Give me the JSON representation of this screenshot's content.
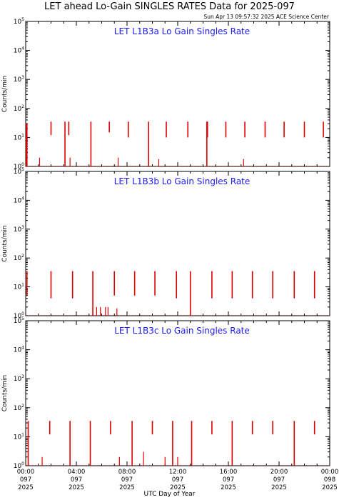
{
  "page": {
    "title": "LET ahead Lo-Gain SINGLES RATES Data for 2025-097",
    "timestamp": "Sun Apr 13 09:57:32 2025 ACE Science Center",
    "xlabel": "UTC Day of Year"
  },
  "colors": {
    "data": "#dd0000",
    "panel_title": "#1a1aff",
    "axes": "#000000"
  },
  "chart_data": [
    {
      "type": "line",
      "title": "LET L1B3a Lo Gain Singles Rate",
      "ylabel": "Counts/min",
      "yscale": "log",
      "ylim": [
        1,
        100000
      ],
      "yticks": [
        "10^0",
        "10^1",
        "10^2",
        "10^3",
        "10^4",
        "10^5"
      ],
      "xlim": [
        0,
        24
      ],
      "xunit": "hours UTC",
      "spikes": [
        {
          "x": 0.05,
          "top": 30,
          "bottom": 1
        },
        {
          "x": 0.1,
          "top": 30,
          "bottom": 1
        },
        {
          "x": 2.0,
          "top": 35,
          "bottom": 12
        },
        {
          "x": 3.1,
          "top": 35,
          "bottom": 1
        },
        {
          "x": 3.4,
          "top": 35,
          "bottom": 12
        },
        {
          "x": 5.15,
          "top": 35,
          "bottom": 1
        },
        {
          "x": 6.6,
          "top": 35,
          "bottom": 15
        },
        {
          "x": 8.1,
          "top": 35,
          "bottom": 10
        },
        {
          "x": 9.7,
          "top": 35,
          "bottom": 1
        },
        {
          "x": 11.1,
          "top": 35,
          "bottom": 10
        },
        {
          "x": 12.8,
          "top": 35,
          "bottom": 10
        },
        {
          "x": 14.3,
          "top": 35,
          "bottom": 1
        },
        {
          "x": 14.35,
          "top": 35,
          "bottom": 10
        },
        {
          "x": 15.8,
          "top": 35,
          "bottom": 10
        },
        {
          "x": 17.3,
          "top": 35,
          "bottom": 10
        },
        {
          "x": 18.9,
          "top": 35,
          "bottom": 10
        },
        {
          "x": 20.4,
          "top": 35,
          "bottom": 10
        },
        {
          "x": 22.0,
          "top": 35,
          "bottom": 10
        },
        {
          "x": 23.5,
          "top": 35,
          "bottom": 10
        }
      ],
      "minor_spikes": [
        {
          "x": 1.1,
          "top": 2
        },
        {
          "x": 3.5,
          "top": 2
        },
        {
          "x": 7.3,
          "top": 2
        },
        {
          "x": 9.7,
          "top": 2
        },
        {
          "x": 10.5,
          "top": 1.8
        },
        {
          "x": 17.2,
          "top": 1.8
        }
      ]
    },
    {
      "type": "line",
      "title": "LET L1B3b Lo Gain Singles Rate",
      "ylabel": "Counts/min",
      "yscale": "log",
      "ylim": [
        1,
        100000
      ],
      "yticks": [
        "10^0",
        "10^1",
        "10^2",
        "10^3",
        "10^4",
        "10^5"
      ],
      "xlim": [
        0,
        24
      ],
      "xunit": "hours UTC",
      "spikes": [
        {
          "x": 0.1,
          "top": 35,
          "bottom": 5
        },
        {
          "x": 2.0,
          "top": 35,
          "bottom": 4
        },
        {
          "x": 3.7,
          "top": 35,
          "bottom": 4
        },
        {
          "x": 5.3,
          "top": 35,
          "bottom": 1
        },
        {
          "x": 7.0,
          "top": 35,
          "bottom": 5
        },
        {
          "x": 8.6,
          "top": 35,
          "bottom": 5
        },
        {
          "x": 10.2,
          "top": 35,
          "bottom": 5
        },
        {
          "x": 11.9,
          "top": 35,
          "bottom": 4
        },
        {
          "x": 13.0,
          "top": 35,
          "bottom": 1
        },
        {
          "x": 14.7,
          "top": 35,
          "bottom": 4
        },
        {
          "x": 16.3,
          "top": 35,
          "bottom": 4
        },
        {
          "x": 17.9,
          "top": 35,
          "bottom": 4
        },
        {
          "x": 19.5,
          "top": 35,
          "bottom": 4
        },
        {
          "x": 21.2,
          "top": 35,
          "bottom": 4
        },
        {
          "x": 22.8,
          "top": 35,
          "bottom": 4
        }
      ],
      "minor_spikes": [
        {
          "x": 5.6,
          "top": 2
        },
        {
          "x": 5.9,
          "top": 2
        },
        {
          "x": 6.3,
          "top": 2
        },
        {
          "x": 6.5,
          "top": 2
        },
        {
          "x": 7.2,
          "top": 1.8
        }
      ]
    },
    {
      "type": "line",
      "title": "LET L1B3c Lo Gain Singles Rate",
      "ylabel": "Counts/min",
      "yscale": "log",
      "ylim": [
        1,
        100000
      ],
      "yticks": [
        "10^0",
        "10^1",
        "10^2",
        "10^3",
        "10^4",
        "10^5"
      ],
      "xlim": [
        0,
        24
      ],
      "xunit": "hours UTC",
      "spikes": [
        {
          "x": 0.2,
          "top": 35,
          "bottom": 1
        },
        {
          "x": 1.9,
          "top": 35,
          "bottom": 12
        },
        {
          "x": 3.5,
          "top": 35,
          "bottom": 1
        },
        {
          "x": 5.1,
          "top": 35,
          "bottom": 1
        },
        {
          "x": 6.7,
          "top": 35,
          "bottom": 12
        },
        {
          "x": 8.4,
          "top": 35,
          "bottom": 1
        },
        {
          "x": 10.0,
          "top": 35,
          "bottom": 12
        },
        {
          "x": 11.6,
          "top": 35,
          "bottom": 1
        },
        {
          "x": 13.1,
          "top": 35,
          "bottom": 1
        },
        {
          "x": 14.7,
          "top": 35,
          "bottom": 12
        },
        {
          "x": 16.3,
          "top": 35,
          "bottom": 1
        },
        {
          "x": 17.9,
          "top": 35,
          "bottom": 12
        },
        {
          "x": 19.5,
          "top": 35,
          "bottom": 12
        },
        {
          "x": 21.2,
          "top": 35,
          "bottom": 1
        },
        {
          "x": 22.8,
          "top": 35,
          "bottom": 12
        }
      ],
      "minor_spikes": [
        {
          "x": 1.3,
          "top": 2
        },
        {
          "x": 7.4,
          "top": 2
        },
        {
          "x": 9.3,
          "top": 3
        },
        {
          "x": 11.0,
          "top": 2
        },
        {
          "x": 12.0,
          "top": 2
        }
      ]
    }
  ],
  "x_axis": {
    "ticks": [
      {
        "hour": 0,
        "time": "00:00",
        "doy": "097",
        "year": "2025"
      },
      {
        "hour": 4,
        "time": "04:00",
        "doy": "097",
        "year": "2025"
      },
      {
        "hour": 8,
        "time": "08:00",
        "doy": "097",
        "year": "2025"
      },
      {
        "hour": 12,
        "time": "12:00",
        "doy": "097",
        "year": "2025"
      },
      {
        "hour": 16,
        "time": "16:00",
        "doy": "097",
        "year": "2025"
      },
      {
        "hour": 20,
        "time": "20:00",
        "doy": "097",
        "year": "2025"
      },
      {
        "hour": 24,
        "time": "00:00",
        "doy": "098",
        "year": "2025"
      }
    ]
  }
}
